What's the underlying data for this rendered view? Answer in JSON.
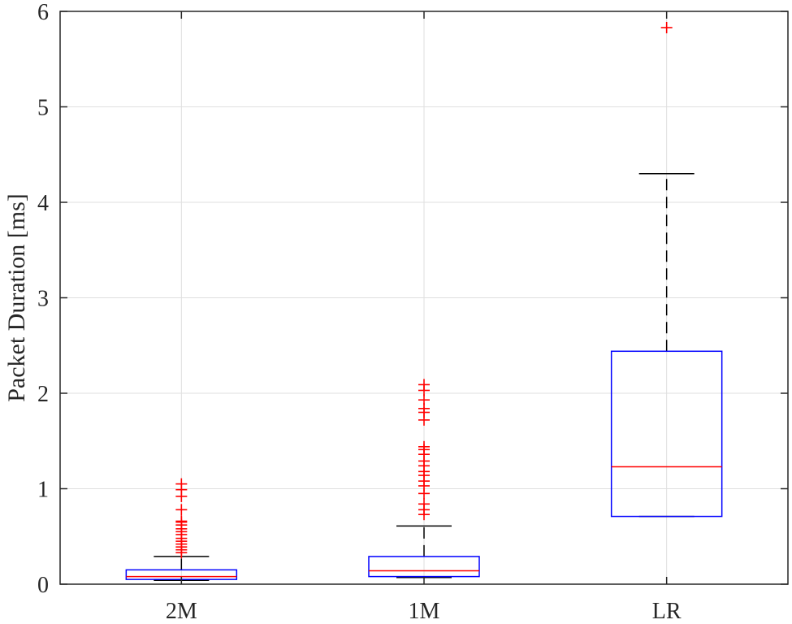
{
  "chart_data": {
    "type": "box",
    "title": "",
    "xlabel": "",
    "ylabel": "Packet Duration [ms]",
    "ylim": [
      0,
      6
    ],
    "yticks": [
      0,
      1,
      2,
      3,
      4,
      5,
      6
    ],
    "grid": true,
    "categories": [
      "2M",
      "1M",
      "LR"
    ],
    "boxes": [
      {
        "category": "2M",
        "whisker_low": 0.04,
        "q1": 0.05,
        "median": 0.08,
        "q3": 0.15,
        "whisker_high": 0.29,
        "outliers": [
          0.33,
          0.36,
          0.39,
          0.42,
          0.45,
          0.48,
          0.52,
          0.55,
          0.58,
          0.62,
          0.65,
          0.66,
          0.78,
          0.92,
          0.99,
          1.05
        ]
      },
      {
        "category": "1M",
        "whisker_low": 0.07,
        "q1": 0.08,
        "median": 0.14,
        "q3": 0.29,
        "whisker_high": 0.61,
        "outliers": [
          0.73,
          0.78,
          0.84,
          0.95,
          1.03,
          1.08,
          1.14,
          1.18,
          1.24,
          1.29,
          1.36,
          1.41,
          1.44,
          1.72,
          1.8,
          1.84,
          1.93,
          2.03,
          2.09
        ]
      },
      {
        "category": "LR",
        "whisker_low": 0.71,
        "q1": 0.71,
        "median": 1.23,
        "q3": 2.44,
        "whisker_high": 4.3,
        "outliers": [
          5.83
        ]
      }
    ],
    "colors": {
      "box": "#0000ff",
      "median": "#ff0000",
      "whisker": "#000000",
      "outlier": "#ff0000",
      "grid": "#dfdfdf",
      "axis": "#262626"
    }
  }
}
